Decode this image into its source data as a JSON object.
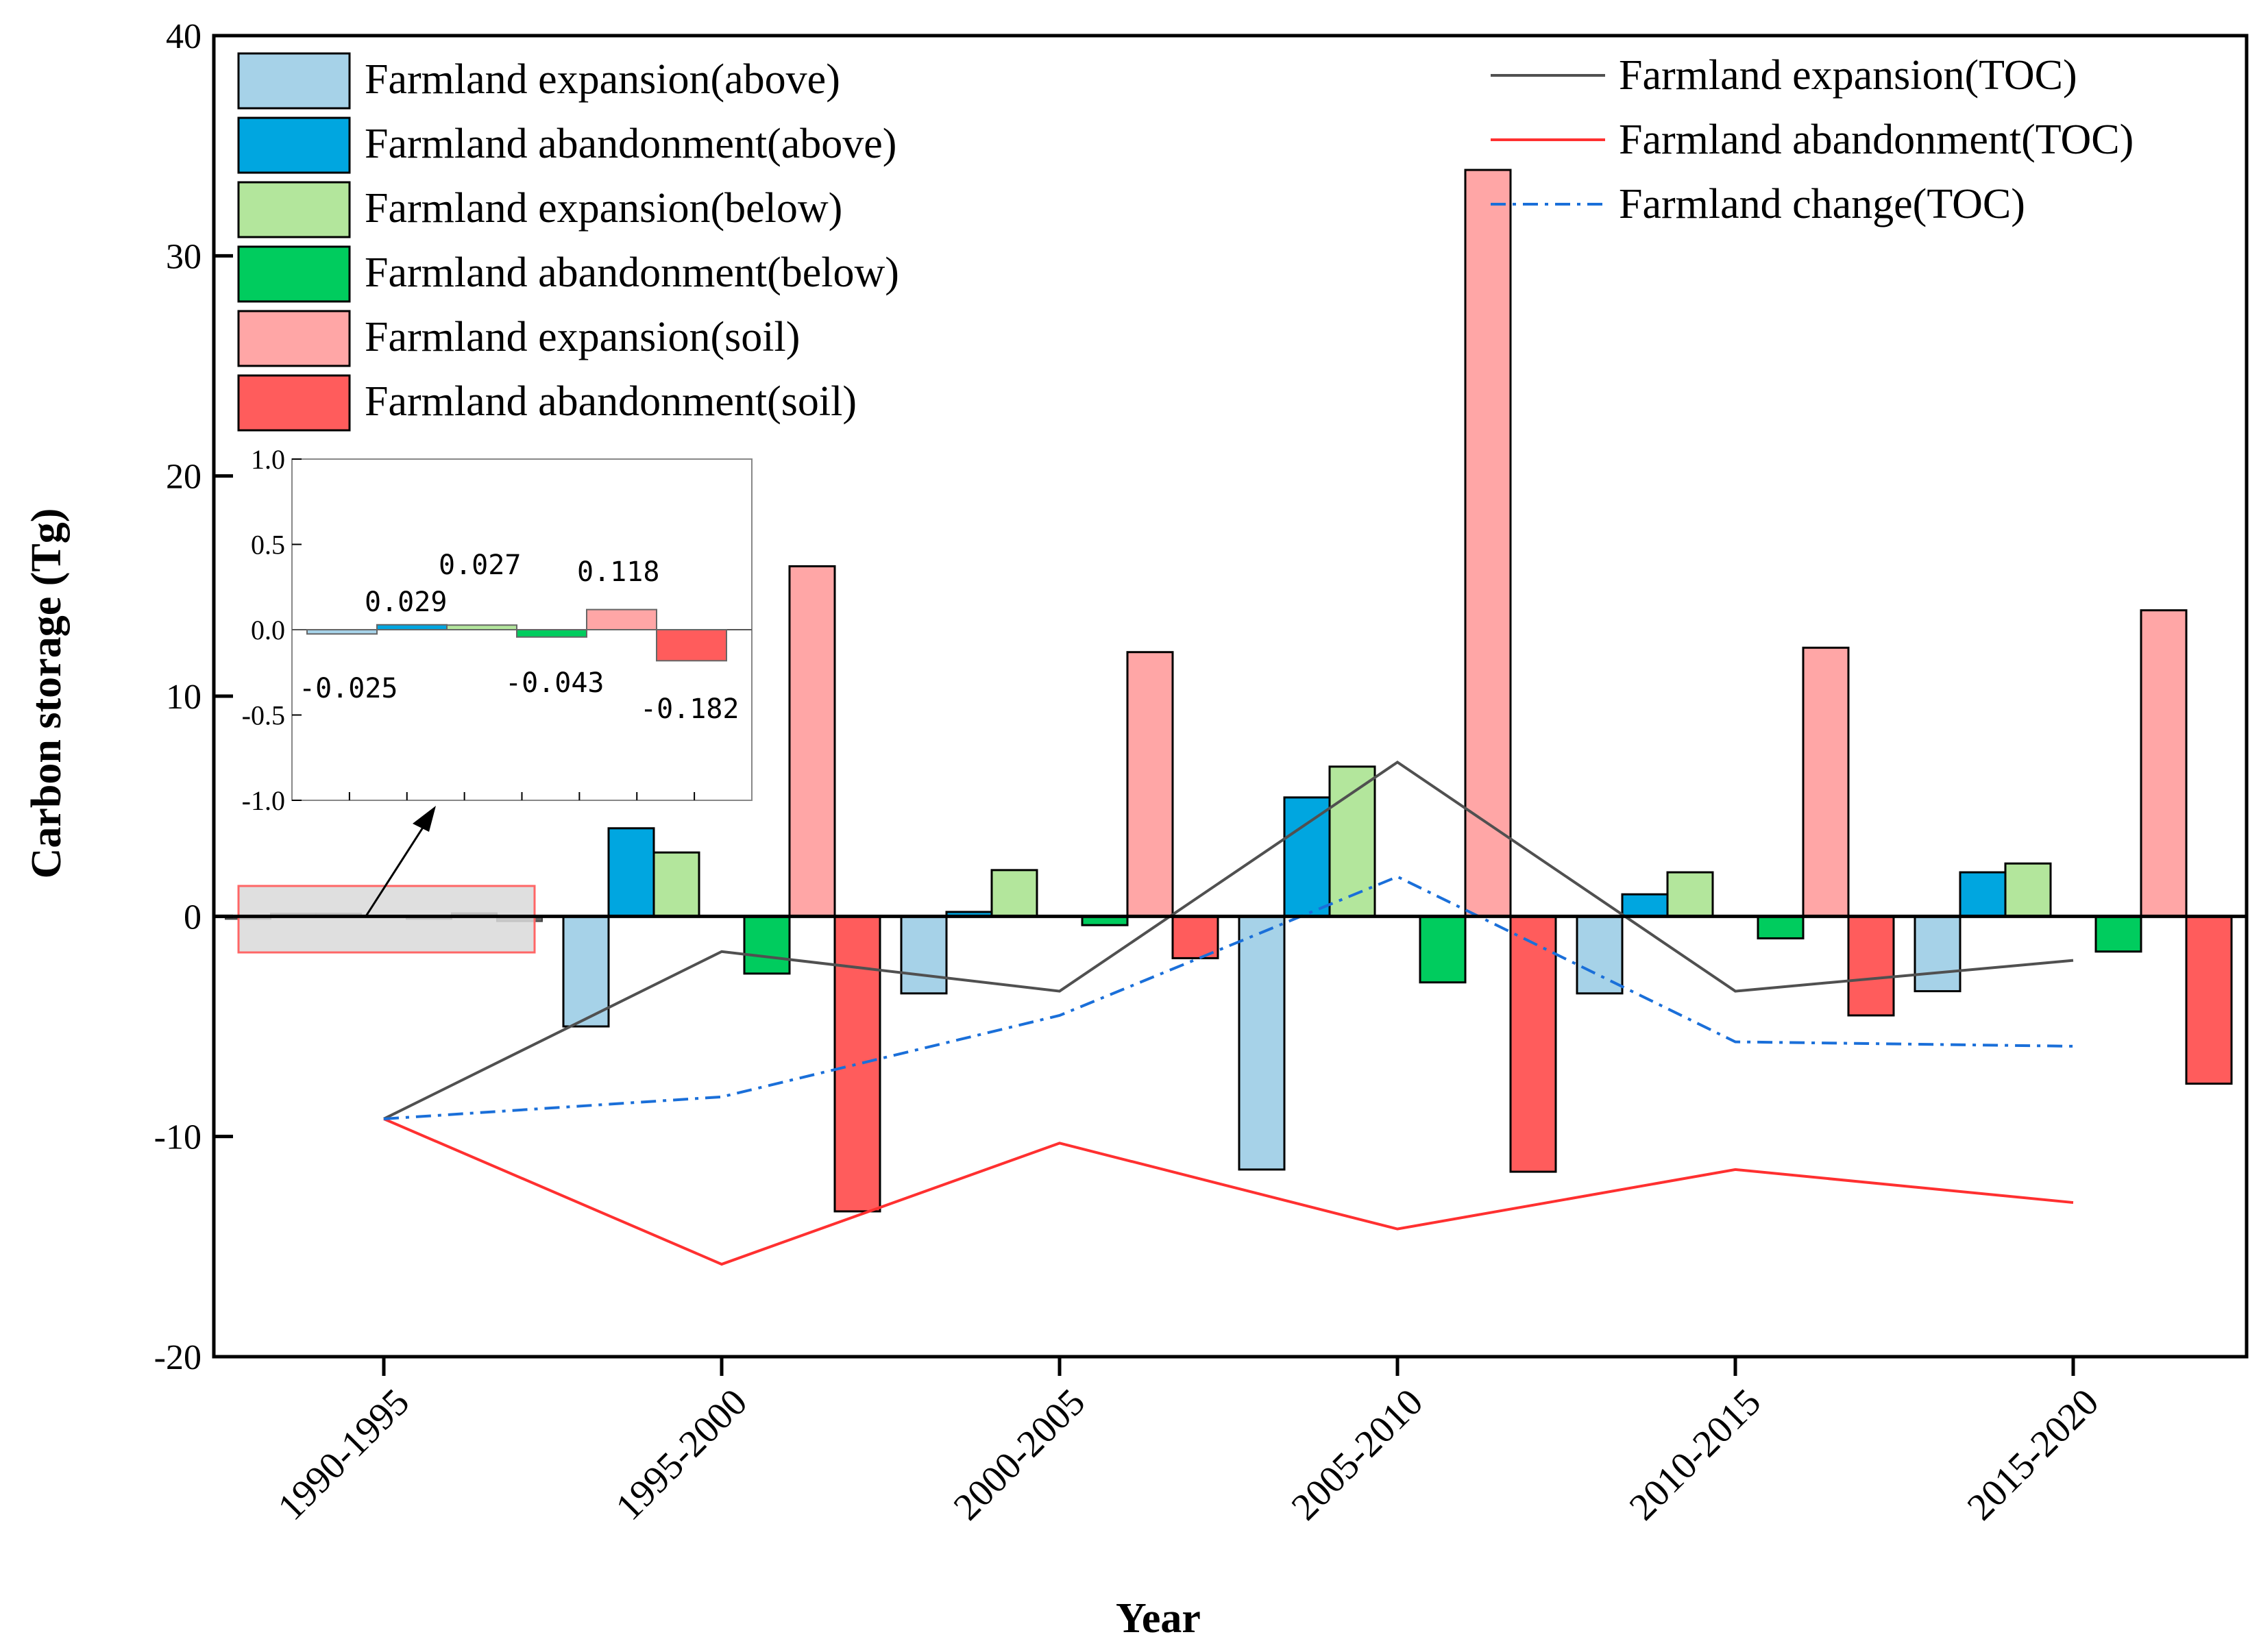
{
  "chart_data": {
    "type": "bar",
    "xlabel": "Year",
    "ylabel": "Carbon storage (Tg)",
    "ylim": [
      -20,
      40
    ],
    "yticks": [
      -20,
      -10,
      0,
      10,
      20,
      30,
      40
    ],
    "categories": [
      "1990-1995",
      "1995-2000",
      "2000-2005",
      "2005-2010",
      "2010-2015",
      "2015-2020"
    ],
    "bar_series": [
      {
        "name": "Farmland expansion(above)",
        "color": "#a6d2e8",
        "values": [
          -0.025,
          -5.0,
          -3.5,
          -11.5,
          -3.5,
          -3.4
        ]
      },
      {
        "name": "Farmland abandonment(above)",
        "color": "#00a6e0",
        "values": [
          0.029,
          4.0,
          0.2,
          5.4,
          1.0,
          2.0
        ]
      },
      {
        "name": "Farmland expansion(below)",
        "color": "#b3e69c",
        "values": [
          0.027,
          2.9,
          2.1,
          6.8,
          2.0,
          2.4
        ]
      },
      {
        "name": "Farmland abandonment(below)",
        "color": "#00cc5e",
        "values": [
          -0.043,
          -2.6,
          -0.4,
          -3.0,
          -1.0,
          -1.6
        ]
      },
      {
        "name": "Farmland expansion(soil)",
        "color": "#ffa6a6",
        "values": [
          0.118,
          15.9,
          12.0,
          33.9,
          12.2,
          13.9
        ]
      },
      {
        "name": "Farmland abandonment(soil)",
        "color": "#ff5c5c",
        "values": [
          -0.182,
          -13.4,
          -1.9,
          -11.6,
          -4.5,
          -7.6
        ]
      }
    ],
    "line_series": [
      {
        "name": "Farmland expansion(TOC)",
        "color": "#505050",
        "dash": "solid",
        "values": [
          -9.2,
          -1.6,
          -3.4,
          7.0,
          -3.4,
          -2.0
        ]
      },
      {
        "name": "Farmland abandonment(TOC)",
        "color": "#ff3030",
        "dash": "solid",
        "values": [
          -9.2,
          -15.8,
          -10.3,
          -14.2,
          -11.5,
          -13.0
        ]
      },
      {
        "name": "Farmland change(TOC)",
        "color": "#1a6fd9",
        "dash": "dashdot",
        "values": [
          -9.2,
          -8.2,
          -4.5,
          1.8,
          -5.7,
          -5.9
        ]
      }
    ],
    "inset": {
      "ylim": [
        -1.0,
        1.0
      ],
      "yticks": [
        "1.0",
        "0.5",
        "0.0",
        "-0.5",
        "-1.0"
      ],
      "ytick_values": [
        1.0,
        0.5,
        0.0,
        -0.5,
        -1.0
      ],
      "values": [
        -0.025,
        0.029,
        0.027,
        -0.043,
        0.118,
        -0.182
      ],
      "labels": [
        "-0.025",
        "0.029",
        "0.027",
        "-0.043",
        "0.118",
        "-0.182"
      ]
    }
  }
}
